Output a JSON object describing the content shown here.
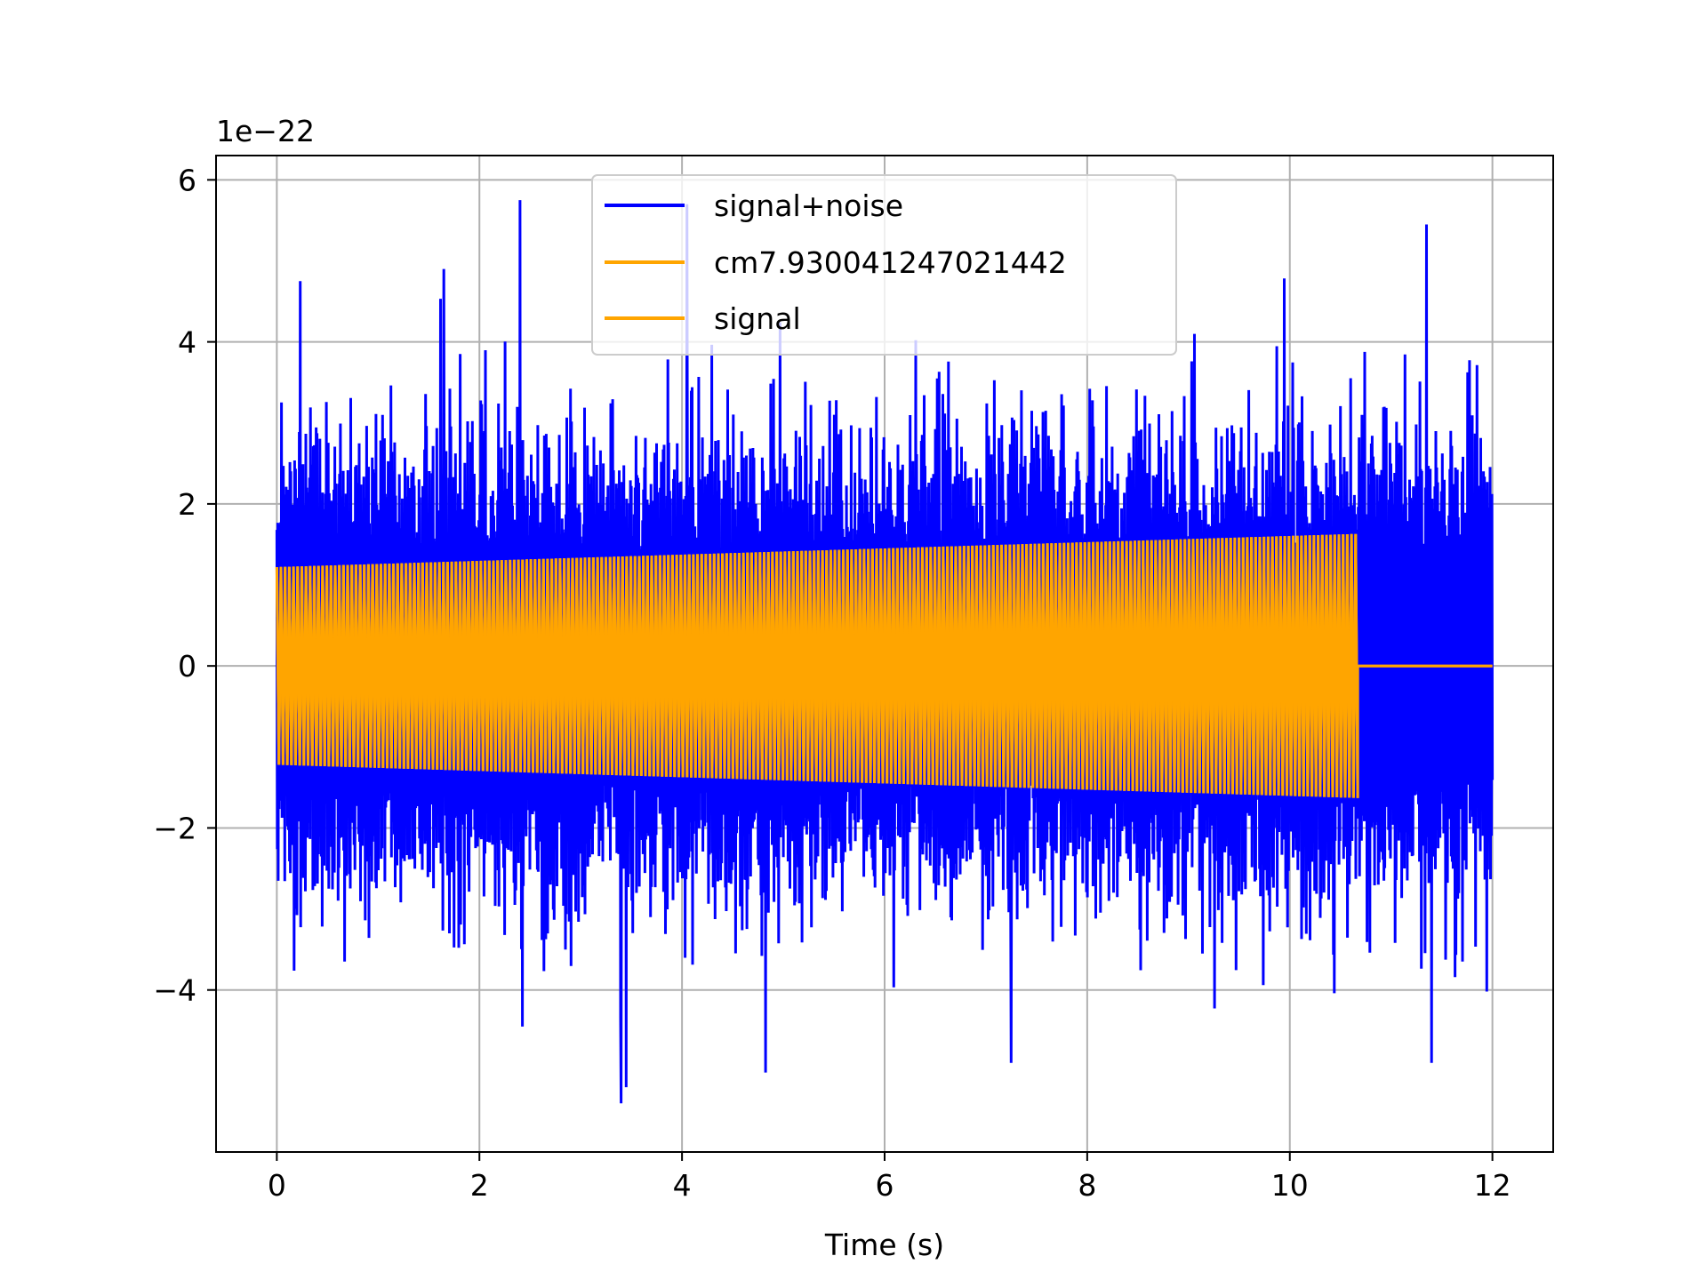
{
  "chart_data": {
    "type": "line",
    "title": "",
    "xlabel": "Time (s)",
    "ylabel": "",
    "y_offset_label": "1e−22",
    "xlim": [
      -0.6,
      12.6
    ],
    "ylim": [
      -6.0,
      6.3
    ],
    "xticks": [
      0,
      2,
      4,
      6,
      8,
      10,
      12
    ],
    "yticks": [
      -4,
      -2,
      0,
      2,
      4,
      6
    ],
    "xtick_labels": [
      "0",
      "2",
      "4",
      "6",
      "8",
      "10",
      "12"
    ],
    "ytick_labels": [
      "−4",
      "−2",
      "0",
      "2",
      "4",
      "6"
    ],
    "grid": true,
    "legend_position": "upper center",
    "series": [
      {
        "name": "signal+noise",
        "color": "#0000ff",
        "x_range": [
          0,
          12
        ],
        "approx_min": -5.4,
        "approx_max": 5.75,
        "notable_extremes": [
          {
            "x": 0.23,
            "y": 4.75
          },
          {
            "x": 1.65,
            "y": 4.9
          },
          {
            "x": 2.4,
            "y": 5.75
          },
          {
            "x": 3.4,
            "y": -5.4
          },
          {
            "x": 3.45,
            "y": -5.2
          },
          {
            "x": 4.05,
            "y": 5.7
          },
          {
            "x": 7.25,
            "y": -4.9
          },
          {
            "x": 11.35,
            "y": 5.45
          },
          {
            "x": 11.4,
            "y": -4.9
          }
        ]
      },
      {
        "name": "cm7.930041247021442",
        "color": "#ffa500",
        "x_range": [
          0,
          10.67
        ],
        "envelope_start": 1.22,
        "envelope_end": 1.63,
        "after_end_value": 0
      },
      {
        "name": "signal",
        "color": "#ffa500",
        "x_range": [
          0,
          12
        ],
        "envelope_start": 1.22,
        "envelope_end": 1.63,
        "merger_time": 10.67,
        "after_end_value": 0
      }
    ]
  }
}
